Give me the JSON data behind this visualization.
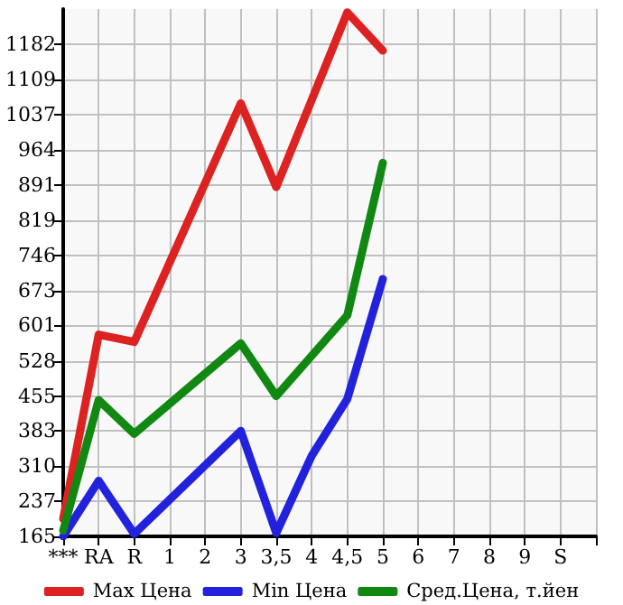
{
  "chart_data": {
    "type": "line",
    "categories": [
      "***",
      "RA",
      "R",
      "1",
      "2",
      "3",
      "3,5",
      "4",
      "4,5",
      "5",
      "6",
      "7",
      "8",
      "9",
      "S",
      null
    ],
    "series": [
      {
        "name": "Max Цена",
        "color": "#dd2222",
        "values": [
          201,
          582,
          567,
          null,
          null,
          1060,
          887,
          null,
          1248,
          1169,
          null,
          null,
          null,
          null,
          null,
          null
        ]
      },
      {
        "name": "Min Цена",
        "color": "#2222dd",
        "values": [
          165,
          280,
          170,
          null,
          null,
          383,
          172,
          332,
          449,
          697,
          null,
          null,
          null,
          null,
          null,
          null
        ]
      },
      {
        "name": "Сред.Цена, т.йен",
        "color": "#118811",
        "values": [
          177,
          447,
          377,
          null,
          null,
          564,
          455,
          null,
          622,
          937,
          null,
          null,
          null,
          null,
          null,
          null
        ]
      }
    ],
    "ylim": [
      165,
      1255
    ],
    "yticks": [
      165,
      237,
      310,
      383,
      455,
      528,
      601,
      673,
      746,
      819,
      891,
      964,
      1037,
      1109,
      1182
    ],
    "grid": true,
    "legend": "bottom",
    "marker": "none",
    "line_style": "solid"
  }
}
